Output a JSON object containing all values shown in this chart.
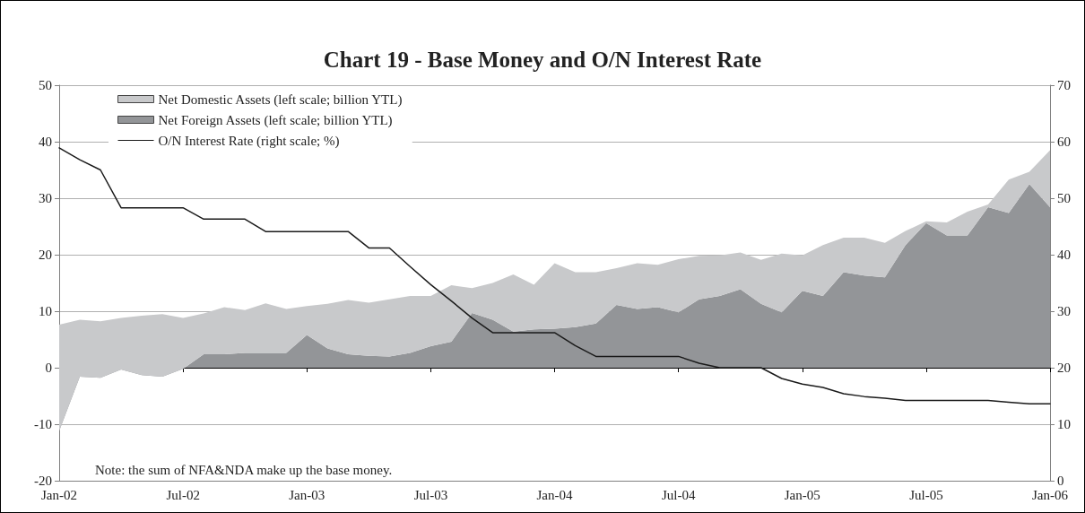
{
  "chart_data": {
    "type": "area",
    "title": "Chart 19 - Base Money and O/N Interest Rate",
    "categories": [
      "Jan-02",
      null,
      null,
      null,
      null,
      null,
      "Jul-02",
      null,
      null,
      null,
      null,
      null,
      "Jan-03",
      null,
      null,
      null,
      null,
      null,
      "Jul-03",
      null,
      null,
      null,
      null,
      null,
      "Jan-04",
      null,
      null,
      null,
      null,
      null,
      "Jul-04",
      null,
      null,
      null,
      null,
      null,
      "Jan-05",
      null,
      null,
      null,
      null,
      null,
      "Jul-05",
      null,
      null,
      null,
      null,
      null,
      "Jan-06"
    ],
    "stacked": true,
    "series": [
      {
        "name": "Net Foreign Assets (left scale; billion YTL)",
        "color": "#939598",
        "values": [
          -11.2,
          -1.6,
          -1.8,
          -0.3,
          -1.3,
          -1.6,
          -0.2,
          2.4,
          2.4,
          2.6,
          2.6,
          2.6,
          5.8,
          3.4,
          2.4,
          2.1,
          2.0,
          2.6,
          3.8,
          4.6,
          9.7,
          8.5,
          6.4,
          6.8,
          6.9,
          7.2,
          7.8,
          11.1,
          10.4,
          10.7,
          9.8,
          12.1,
          12.7,
          13.9,
          11.3,
          9.8,
          13.6,
          12.7,
          16.9,
          16.3,
          16.0,
          21.7,
          25.6,
          23.4,
          23.4,
          28.4,
          27.4,
          32.5,
          28.4
        ]
      },
      {
        "name": "Net Domestic Assets (left scale; billion YTL)",
        "color": "#c8c9cb",
        "values": [
          18.8,
          10.1,
          10.0,
          9.1,
          10.5,
          11.1,
          9.0,
          7.2,
          8.3,
          7.6,
          8.8,
          7.8,
          5.1,
          7.9,
          9.6,
          9.4,
          10.1,
          10.1,
          8.9,
          10.0,
          4.4,
          6.5,
          10.1,
          7.9,
          11.6,
          9.7,
          9.1,
          6.5,
          8.1,
          7.5,
          9.4,
          7.7,
          7.2,
          6.5,
          7.8,
          10.4,
          6.3,
          9.0,
          6.1,
          6.7,
          6.1,
          2.5,
          0.3,
          2.3,
          4.2,
          0.5,
          5.9,
          2.2,
          10.1
        ]
      },
      {
        "name": "O/N Interest Rate (right scale; %)",
        "type": "line",
        "axis": "y2",
        "color": "#1a1a1a",
        "values": [
          58.9,
          56.8,
          55.0,
          48.3,
          48.3,
          48.3,
          48.3,
          46.3,
          46.3,
          46.3,
          44.1,
          44.1,
          44.1,
          44.1,
          44.1,
          41.2,
          41.2,
          37.9,
          34.7,
          31.8,
          28.8,
          26.2,
          26.2,
          26.2,
          26.2,
          23.9,
          22.0,
          22.0,
          22.0,
          22.0,
          22.0,
          20.8,
          20.0,
          20.0,
          20.0,
          18.1,
          17.1,
          16.5,
          15.4,
          14.9,
          14.6,
          14.2,
          14.2,
          14.2,
          14.2,
          14.2,
          13.9,
          13.6,
          13.6
        ]
      }
    ],
    "ylim": [
      -20,
      50
    ],
    "yticks": [
      -20,
      -10,
      0,
      10,
      20,
      30,
      40,
      50
    ],
    "y2lim": [
      0,
      70
    ],
    "y2ticks": [
      0,
      10,
      20,
      30,
      40,
      50,
      60,
      70
    ],
    "grid": "y",
    "legend": "top left",
    "marker": "none",
    "line_style": "solid",
    "annotations": [
      "Note: the sum of NFA&NDA make up the base money."
    ]
  }
}
